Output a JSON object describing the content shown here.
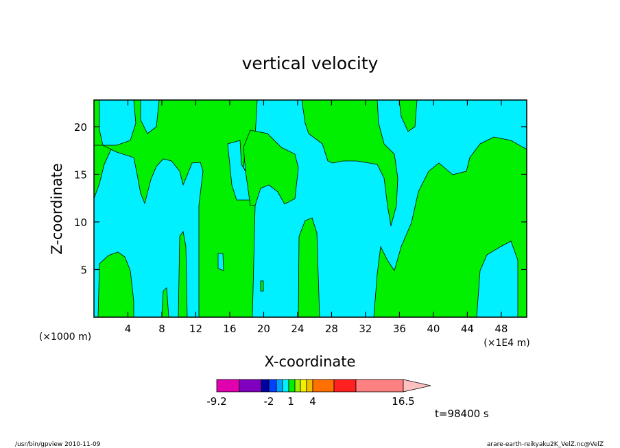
{
  "chart_data": {
    "type": "contour",
    "title": "vertical velocity",
    "x_label": "X-coordinate",
    "y_label": "Z-coordinate",
    "x_unit_label": "(×1000 m)",
    "x_unit_label2": "(×1E4 m)",
    "xlim": [
      0,
      51
    ],
    "xticks": [
      4,
      8,
      12,
      16,
      20,
      24,
      28,
      32,
      36,
      40,
      44,
      48
    ],
    "ylim": [
      0,
      22.8
    ],
    "yticks": [
      5,
      10,
      15,
      20
    ],
    "colorbar": {
      "colors": [
        "#e000b0",
        "#8000c0",
        "#0000a0",
        "#0040ff",
        "#00a0ff",
        "#00f0ff",
        "#00f000",
        "#a0f000",
        "#f0f000",
        "#f0c000",
        "#ff7000",
        "#ff2020",
        "#ff8080",
        "#ffc0c0"
      ],
      "ticks": [
        -9.2,
        -2,
        1,
        4,
        16.5
      ]
    },
    "time_label": "t=98400 s"
  },
  "footer": {
    "left": "/usr/bin/gpview  2010-11-09",
    "right": "arare-earth-reikyaku2K_VelZ.nc@VelZ"
  }
}
